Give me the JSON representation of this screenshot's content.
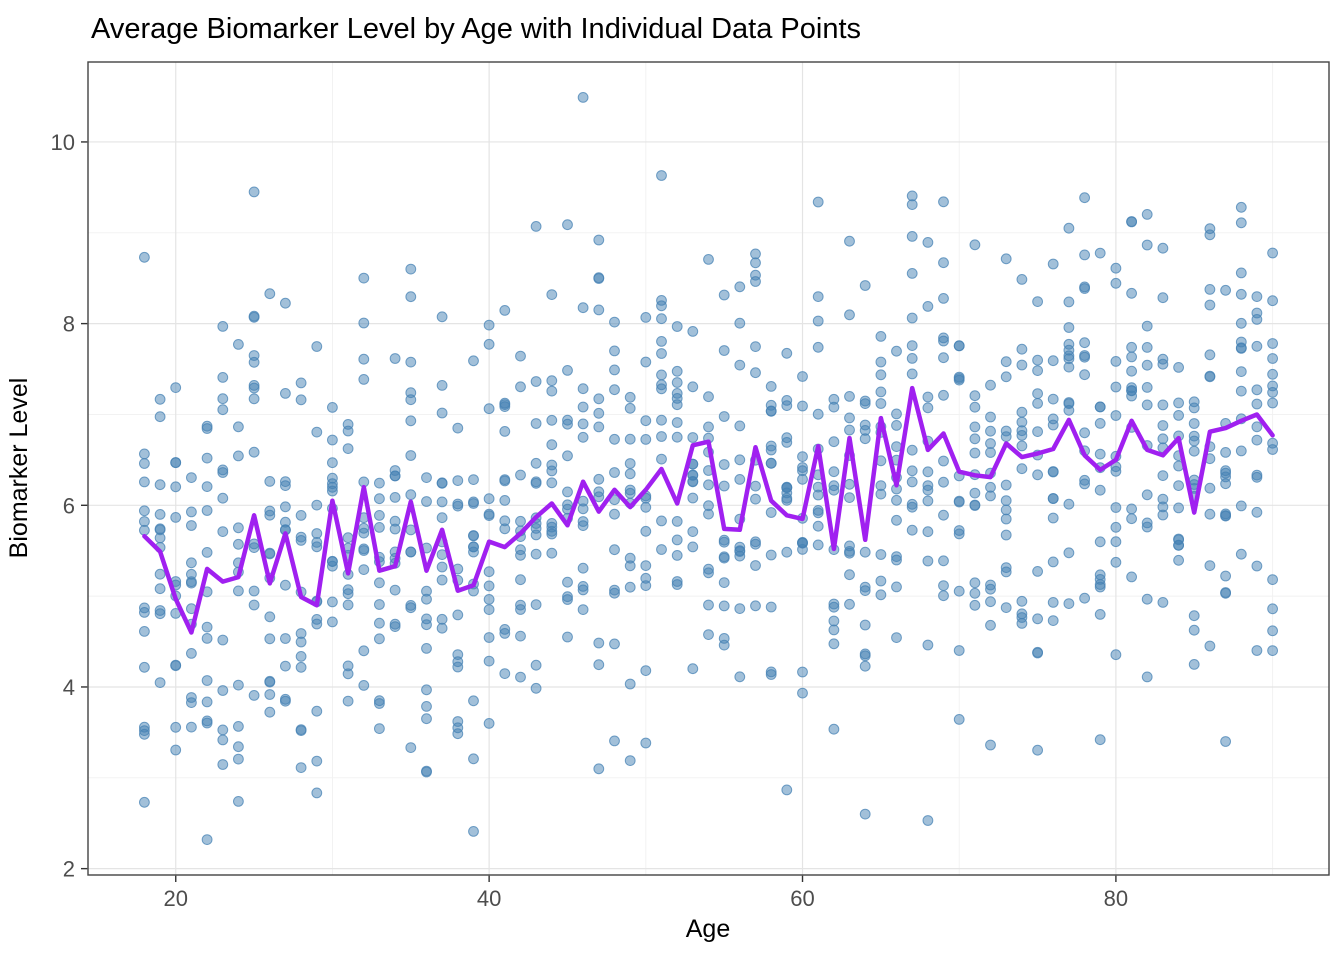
{
  "chart_data": {
    "type": "scatter",
    "title": "Average Biomarker Level by Age with Individual Data Points",
    "xlabel": "Age",
    "ylabel": "Biomarker Level",
    "xlim": [
      14.4,
      93.6
    ],
    "ylim": [
      1.93,
      10.88
    ],
    "x_major_ticks": [
      20,
      40,
      60,
      80
    ],
    "x_minor_gridlines": [
      30,
      50,
      70,
      90
    ],
    "y_major_ticks": [
      2,
      4,
      6,
      8,
      10
    ],
    "y_minor_gridlines": [
      3,
      5,
      7,
      9
    ],
    "grid": "major and minor gridlines on white panel, dark panel border, no legend",
    "legend": "none",
    "colors": {
      "points": "#4682B4",
      "points_opacity": 0.5,
      "mean_line": "#A020F0",
      "grid_major": "#E4E4E4",
      "grid_minor": "#F1F1F1",
      "panel_border": "#434343",
      "axis_text": "#4D4D4D",
      "title_text": "#000000"
    },
    "mean_line_series": {
      "name": "average biomarker level per age (purple line)",
      "x": [
        18,
        19,
        20,
        21,
        22,
        23,
        24,
        25,
        26,
        27,
        28,
        29,
        30,
        31,
        32,
        33,
        34,
        35,
        36,
        37,
        38,
        39,
        40,
        41,
        42,
        43,
        44,
        45,
        46,
        47,
        48,
        49,
        50,
        51,
        52,
        53,
        54,
        55,
        56,
        57,
        58,
        59,
        60,
        61,
        62,
        63,
        64,
        65,
        66,
        67,
        68,
        69,
        70,
        71,
        72,
        73,
        74,
        75,
        76,
        77,
        78,
        79,
        80,
        81,
        82,
        83,
        84,
        85,
        86,
        87,
        88,
        89,
        90
      ],
      "y": [
        5.66,
        5.49,
        4.97,
        4.6,
        5.3,
        5.16,
        5.21,
        5.89,
        5.14,
        5.69,
        4.99,
        4.9,
        6.05,
        5.25,
        6.2,
        5.28,
        5.33,
        6.04,
        5.28,
        5.73,
        5.06,
        5.12,
        5.6,
        5.54,
        5.69,
        5.87,
        6.02,
        5.78,
        6.26,
        5.93,
        6.17,
        5.98,
        6.17,
        6.4,
        6.02,
        6.66,
        6.7,
        5.74,
        5.73,
        6.64,
        6.05,
        5.89,
        5.85,
        6.65,
        5.52,
        6.74,
        5.62,
        6.96,
        6.22,
        7.29,
        6.61,
        6.79,
        6.37,
        6.33,
        6.31,
        6.68,
        6.53,
        6.57,
        6.62,
        6.94,
        6.55,
        6.39,
        6.5,
        6.93,
        6.61,
        6.55,
        6.74,
        5.92,
        6.81,
        6.85,
        6.93,
        7.0,
        6.77
      ]
    },
    "scatter_points": {
      "description": "approx. 950 individual data points drawn in vertical columns at each integer age 18-90, spread around the age mean, alpha-blended steel blue",
      "n_per_age": 13,
      "sd": 1.2,
      "seed": 20240612,
      "value_range": [
        2.32,
        10.49
      ],
      "notable_extremes": [
        [
          46,
          10.49
        ],
        [
          51,
          9.63
        ],
        [
          25,
          9.45
        ],
        [
          67,
          9.31
        ],
        [
          88,
          9.28
        ],
        [
          81,
          9.12
        ],
        [
          43,
          9.07
        ],
        [
          77,
          9.05
        ],
        [
          35,
          8.6
        ],
        [
          18,
          8.73
        ],
        [
          22,
          2.32
        ],
        [
          39,
          2.41
        ],
        [
          64,
          2.6
        ],
        [
          18,
          2.73
        ],
        [
          87,
          3.4
        ],
        [
          79,
          3.42
        ],
        [
          90,
          4.4
        ]
      ]
    }
  }
}
